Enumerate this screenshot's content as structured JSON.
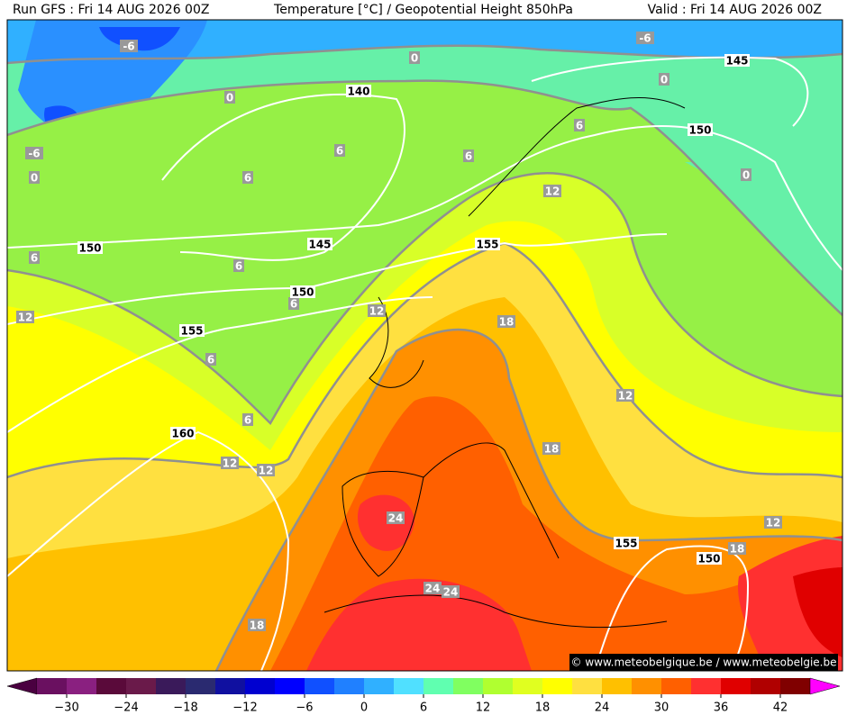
{
  "header": {
    "run": "Run GFS : Fri 14 AUG 2026 00Z",
    "title": "Temperature [°C] / Geopotential Height 850hPa",
    "valid": "Valid : Fri 14 AUG 2026 00Z"
  },
  "isotherm_labels": [
    "-6",
    "-6",
    "0",
    "0",
    "-6",
    "0",
    "0",
    "6",
    "6",
    "6",
    "6",
    "0",
    "12",
    "6",
    "6",
    "6",
    "12",
    "12",
    "18",
    "6",
    "12",
    "6",
    "18",
    "12",
    "12",
    "24",
    "12",
    "18",
    "24",
    "24",
    "18"
  ],
  "height_labels": [
    "145",
    "140",
    "150",
    "150",
    "145",
    "155",
    "150",
    "155",
    "160",
    "155",
    "150"
  ],
  "colorbar": {
    "labels": [
      "−30",
      "−24",
      "−18",
      "−12",
      "−6",
      "0",
      "6",
      "12",
      "18",
      "24",
      "30",
      "36",
      "42"
    ],
    "colors": [
      "#4a0040",
      "#6a1060",
      "#8a2080",
      "#5a0a3a",
      "#6a1a4a",
      "#3a1a5a",
      "#2a2a70",
      "#1010a0",
      "#0000d0",
      "#0000ff",
      "#1050ff",
      "#2080ff",
      "#30b0ff",
      "#50e0ff",
      "#60ffb0",
      "#80ff60",
      "#b0ff30",
      "#e0ff20",
      "#ffff00",
      "#ffe040",
      "#ffc000",
      "#ff9000",
      "#ff6000",
      "#ff3030",
      "#e00000",
      "#b00000",
      "#800000",
      "#900060"
    ]
  },
  "credit": "© www.meteobelgique.be / www.meteobelgie.be"
}
